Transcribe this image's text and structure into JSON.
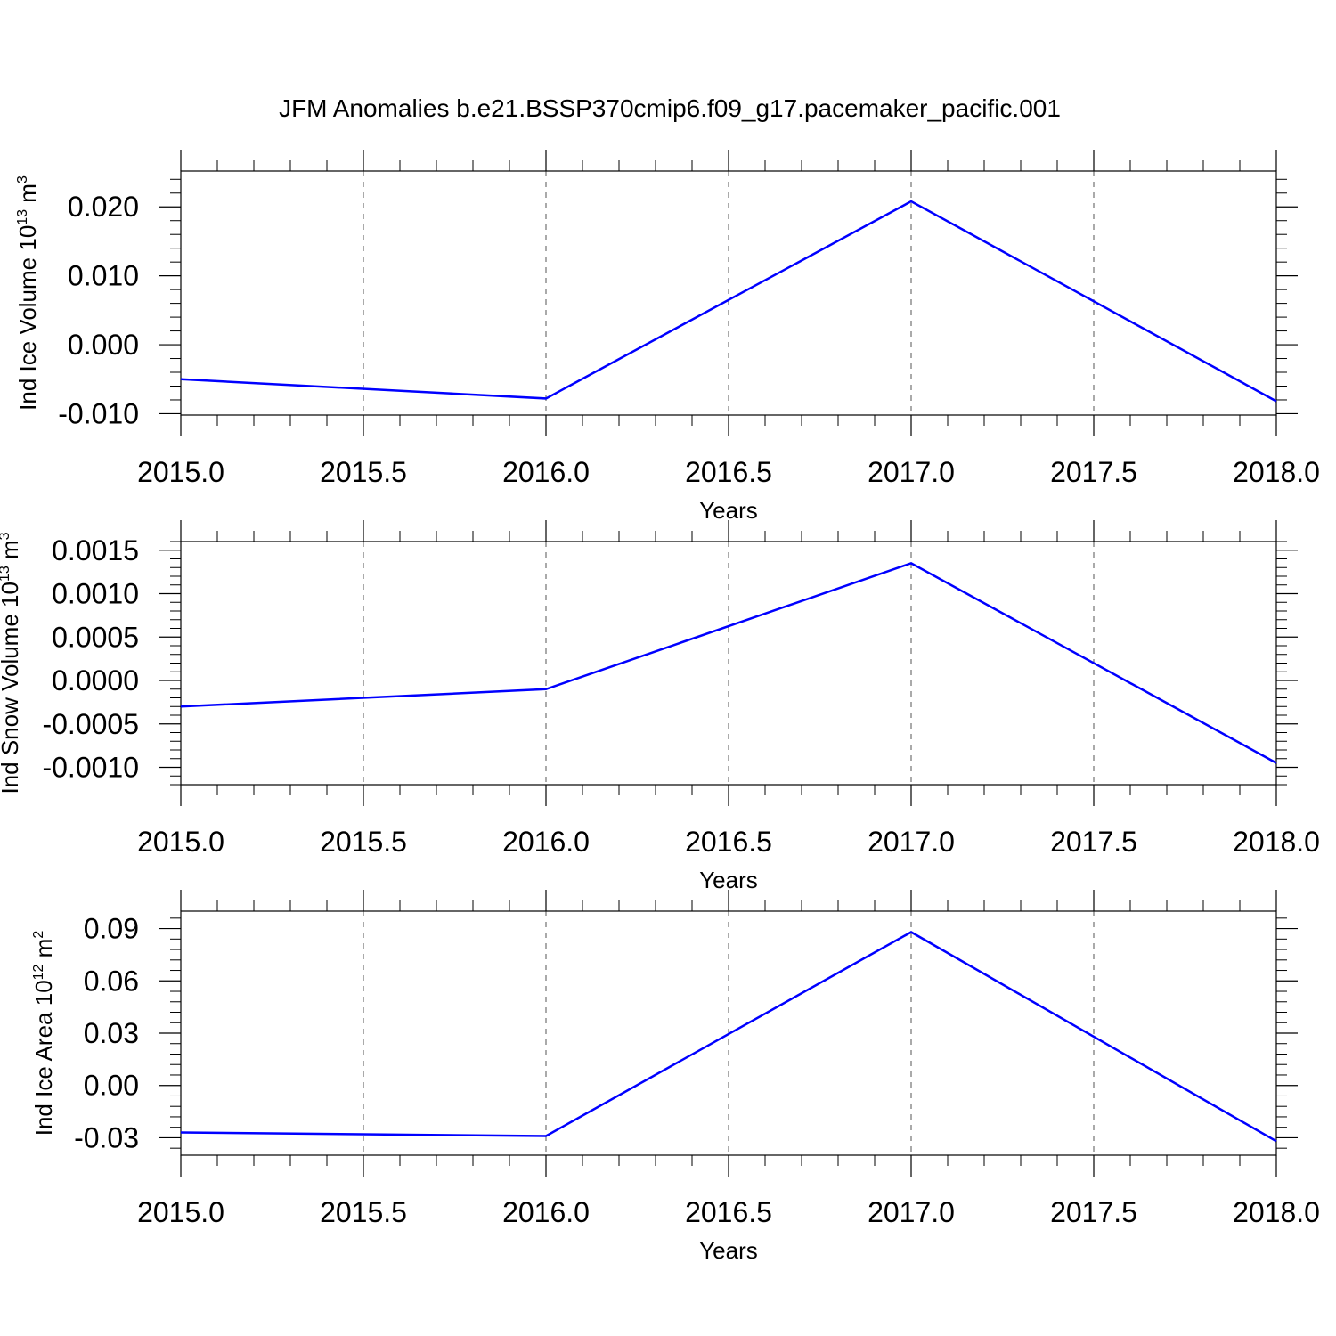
{
  "title": "JFM Anomalies b.e21.BSSP370cmip6.f09_g17.pacemaker_pacific.001",
  "colors": {
    "line": "#0000ff",
    "axis": "#000000",
    "grid": "#555555"
  },
  "chart_data": [
    {
      "type": "line",
      "ylabel_main": "Ind Ice Volume 10",
      "ylabel_exp": "13",
      "ylabel_unit": " m",
      "ylabel_unit_exp": "3",
      "xlabel": "Years",
      "x": [
        2015,
        2016,
        2017,
        2018
      ],
      "values": [
        -0.005,
        -0.0078,
        0.0208,
        -0.0082
      ],
      "xlim": [
        2015,
        2018
      ],
      "ylim": [
        -0.0102,
        0.0252
      ],
      "x_ticks": [
        2015.0,
        2015.5,
        2016.0,
        2016.5,
        2017.0,
        2017.5,
        2018.0
      ],
      "x_tick_labels": [
        "2015.0",
        "2015.5",
        "2016.0",
        "2016.5",
        "2017.0",
        "2017.5",
        "2018.0"
      ],
      "y_ticks": [
        -0.01,
        0.0,
        0.01,
        0.02
      ],
      "y_tick_labels": [
        "-0.010",
        "0.000",
        "0.010",
        "0.020"
      ],
      "y_minor_step": 0.002,
      "grid": "vertical-dashed"
    },
    {
      "type": "line",
      "ylabel_main": "Ind Snow Volume 10",
      "ylabel_exp": "13",
      "ylabel_unit": " m",
      "ylabel_unit_exp": "3",
      "xlabel": "Years",
      "x": [
        2015,
        2016,
        2017,
        2018
      ],
      "values": [
        -0.0003,
        -0.0001,
        0.00135,
        -0.00095
      ],
      "xlim": [
        2015,
        2018
      ],
      "ylim": [
        -0.0012,
        0.0016
      ],
      "x_ticks": [
        2015.0,
        2015.5,
        2016.0,
        2016.5,
        2017.0,
        2017.5,
        2018.0
      ],
      "x_tick_labels": [
        "2015.0",
        "2015.5",
        "2016.0",
        "2016.5",
        "2017.0",
        "2017.5",
        "2018.0"
      ],
      "y_ticks": [
        -0.001,
        -0.0005,
        0.0,
        0.0005,
        0.001,
        0.0015
      ],
      "y_tick_labels": [
        "-0.0010",
        "-0.0005",
        "0.0000",
        "0.0005",
        "0.0010",
        "0.0015"
      ],
      "y_minor_step": 0.0001,
      "grid": "vertical-dashed"
    },
    {
      "type": "line",
      "ylabel_main": "Ind Ice Area 10",
      "ylabel_exp": "12",
      "ylabel_unit": " m",
      "ylabel_unit_exp": "2",
      "xlabel": "Years",
      "x": [
        2015,
        2016,
        2017,
        2018
      ],
      "values": [
        -0.027,
        -0.029,
        0.088,
        -0.032
      ],
      "xlim": [
        2015,
        2018
      ],
      "ylim": [
        -0.04,
        0.1
      ],
      "x_ticks": [
        2015.0,
        2015.5,
        2016.0,
        2016.5,
        2017.0,
        2017.5,
        2018.0
      ],
      "x_tick_labels": [
        "2015.0",
        "2015.5",
        "2016.0",
        "2016.5",
        "2017.0",
        "2017.5",
        "2018.0"
      ],
      "y_ticks": [
        -0.03,
        0.0,
        0.03,
        0.06,
        0.09
      ],
      "y_tick_labels": [
        "-0.03",
        "0.00",
        "0.03",
        "0.06",
        "0.09"
      ],
      "y_minor_step": 0.006,
      "grid": "vertical-dashed"
    }
  ]
}
